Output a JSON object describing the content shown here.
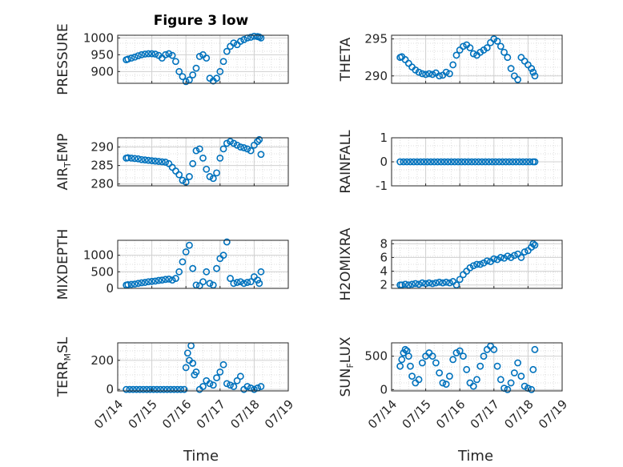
{
  "figure": {
    "title": "Figure 3 low"
  },
  "chart_data": [
    {
      "type": "scatter",
      "ylabel": "PRESSURE",
      "yticks": [
        "1000",
        "950",
        "900"
      ],
      "x": [
        0.25,
        0.3,
        0.4,
        0.5,
        0.6,
        0.7,
        0.8,
        0.9,
        1.0,
        1.1,
        1.2,
        1.3,
        1.4,
        1.5,
        1.6,
        1.7,
        1.8,
        1.9,
        2.0,
        2.1,
        2.2,
        2.3,
        2.4,
        2.5,
        2.6,
        2.7,
        2.8,
        2.9,
        3.0,
        3.1,
        3.2,
        3.3,
        3.4,
        3.5,
        3.6,
        3.7,
        3.8,
        3.9,
        4.0,
        4.1,
        4.15,
        4.2
      ],
      "y": [
        935,
        937,
        940,
        943,
        947,
        950,
        952,
        953,
        953,
        952,
        948,
        940,
        950,
        953,
        948,
        930,
        900,
        885,
        870,
        875,
        890,
        910,
        945,
        950,
        940,
        880,
        872,
        880,
        900,
        930,
        960,
        975,
        985,
        980,
        990,
        995,
        1000,
        1002,
        1005,
        1004,
        1003,
        1000
      ]
    },
    {
      "type": "scatter",
      "ylabel": "THETA",
      "yticks": [
        "295",
        "290"
      ],
      "x": [
        0.25,
        0.3,
        0.4,
        0.5,
        0.6,
        0.7,
        0.8,
        0.9,
        1.0,
        1.1,
        1.2,
        1.3,
        1.4,
        1.5,
        1.6,
        1.7,
        1.8,
        1.9,
        2.0,
        2.1,
        2.2,
        2.3,
        2.4,
        2.5,
        2.6,
        2.7,
        2.8,
        2.9,
        3.0,
        3.1,
        3.2,
        3.3,
        3.4,
        3.5,
        3.6,
        3.7,
        3.8,
        3.9,
        4.0,
        4.1,
        4.15,
        4.2
      ],
      "y": [
        292.5,
        292.6,
        292.2,
        291.7,
        291.2,
        290.8,
        290.5,
        290.3,
        290.2,
        290.3,
        290.2,
        290.4,
        290.0,
        290.1,
        290.5,
        290.3,
        291.5,
        292.8,
        293.5,
        294.0,
        294.2,
        293.8,
        293.0,
        292.8,
        293.2,
        293.5,
        293.8,
        294.5,
        295.0,
        294.7,
        294.0,
        293.2,
        292.5,
        291.0,
        290.0,
        289.5,
        292.5,
        292.0,
        291.5,
        291.0,
        290.5,
        290.0
      ]
    },
    {
      "type": "scatter",
      "ylabel": "AIR",
      "ylabel_sub": "T",
      "ylabel_suffix": "EMP",
      "yticks": [
        "290",
        "285",
        "280"
      ],
      "x": [
        0.25,
        0.3,
        0.4,
        0.5,
        0.6,
        0.7,
        0.8,
        0.9,
        1.0,
        1.1,
        1.2,
        1.3,
        1.4,
        1.5,
        1.6,
        1.7,
        1.8,
        1.9,
        2.0,
        2.1,
        2.2,
        2.3,
        2.4,
        2.5,
        2.6,
        2.7,
        2.8,
        2.9,
        3.0,
        3.1,
        3.2,
        3.3,
        3.4,
        3.5,
        3.6,
        3.7,
        3.8,
        3.9,
        4.0,
        4.1,
        4.15,
        4.2
      ],
      "y": [
        287.0,
        287.1,
        287.0,
        286.9,
        286.8,
        286.6,
        286.5,
        286.4,
        286.3,
        286.2,
        286.1,
        286.0,
        285.9,
        285.5,
        284.5,
        283.5,
        282.5,
        281.0,
        280.5,
        282.0,
        285.5,
        289.0,
        289.5,
        287.0,
        284.0,
        282.0,
        281.5,
        283.0,
        287.0,
        289.5,
        291.0,
        291.5,
        291.0,
        290.5,
        290.0,
        289.8,
        289.5,
        289.0,
        290.5,
        291.5,
        292.0,
        288.0
      ]
    },
    {
      "type": "scatter",
      "ylabel": "RAINFALL",
      "yticks": [
        "1",
        "0",
        "-1"
      ],
      "x": [
        0.25,
        0.35,
        0.45,
        0.55,
        0.65,
        0.75,
        0.85,
        0.95,
        1.05,
        1.15,
        1.25,
        1.35,
        1.45,
        1.55,
        1.65,
        1.75,
        1.85,
        1.95,
        2.05,
        2.15,
        2.25,
        2.35,
        2.45,
        2.55,
        2.65,
        2.75,
        2.85,
        2.95,
        3.05,
        3.15,
        3.25,
        3.35,
        3.45,
        3.55,
        3.65,
        3.75,
        3.85,
        3.95,
        4.05,
        4.15,
        4.2
      ],
      "y": [
        0,
        0,
        0,
        0,
        0,
        0,
        0,
        0,
        0,
        0,
        0,
        0,
        0,
        0,
        0,
        0,
        0,
        0,
        0,
        0,
        0,
        0,
        0,
        0,
        0,
        0,
        0,
        0,
        0,
        0,
        0,
        0,
        0,
        0,
        0,
        0,
        0,
        0,
        0,
        0,
        0
      ]
    },
    {
      "type": "scatter",
      "ylabel": "MIXDEPTH",
      "yticks": [
        "1000",
        "500",
        "0"
      ],
      "x": [
        0.25,
        0.3,
        0.4,
        0.5,
        0.6,
        0.7,
        0.8,
        0.9,
        1.0,
        1.1,
        1.2,
        1.3,
        1.4,
        1.5,
        1.6,
        1.7,
        1.8,
        1.9,
        2.0,
        2.1,
        2.2,
        2.3,
        2.4,
        2.5,
        2.6,
        2.7,
        2.8,
        2.9,
        3.0,
        3.1,
        3.2,
        3.3,
        3.4,
        3.5,
        3.6,
        3.7,
        3.8,
        3.9,
        4.0,
        4.1,
        4.15,
        4.2
      ],
      "y": [
        100,
        110,
        120,
        130,
        150,
        170,
        180,
        200,
        210,
        220,
        240,
        250,
        270,
        280,
        250,
        300,
        500,
        800,
        1100,
        1300,
        600,
        100,
        80,
        200,
        500,
        150,
        100,
        600,
        900,
        1000,
        1400,
        300,
        150,
        180,
        200,
        150,
        180,
        200,
        350,
        250,
        150,
        500
      ]
    },
    {
      "type": "scatter",
      "ylabel": "H2OMIXRA",
      "yticks": [
        "8",
        "6",
        "4",
        "2"
      ],
      "x": [
        0.25,
        0.3,
        0.4,
        0.5,
        0.6,
        0.7,
        0.8,
        0.9,
        1.0,
        1.1,
        1.2,
        1.3,
        1.4,
        1.5,
        1.6,
        1.7,
        1.8,
        1.9,
        2.0,
        2.1,
        2.2,
        2.3,
        2.4,
        2.5,
        2.6,
        2.7,
        2.8,
        2.9,
        3.0,
        3.1,
        3.2,
        3.3,
        3.4,
        3.5,
        3.6,
        3.7,
        3.8,
        3.9,
        4.0,
        4.1,
        4.15,
        4.2
      ],
      "y": [
        2.0,
        2.0,
        2.1,
        2.0,
        2.1,
        2.2,
        2.1,
        2.3,
        2.2,
        2.3,
        2.2,
        2.3,
        2.4,
        2.3,
        2.4,
        2.3,
        2.5,
        2.0,
        2.8,
        3.5,
        4.0,
        4.5,
        4.8,
        5.0,
        5.0,
        5.2,
        5.5,
        5.4,
        5.8,
        5.7,
        6.0,
        5.9,
        6.2,
        6.0,
        6.3,
        6.5,
        6.0,
        6.8,
        7.0,
        7.5,
        8.0,
        7.8
      ]
    },
    {
      "type": "scatter",
      "ylabel": "TERR",
      "ylabel_sub": "M",
      "ylabel_suffix": "SL",
      "yticks": [
        "200",
        "0"
      ],
      "x": [
        0.25,
        0.35,
        0.45,
        0.55,
        0.65,
        0.75,
        0.85,
        0.95,
        1.05,
        1.15,
        1.25,
        1.35,
        1.45,
        1.55,
        1.65,
        1.75,
        1.85,
        1.95,
        2.0,
        2.05,
        2.1,
        2.15,
        2.2,
        2.25,
        2.3,
        2.4,
        2.5,
        2.6,
        2.7,
        2.8,
        2.9,
        3.0,
        3.1,
        3.2,
        3.3,
        3.4,
        3.5,
        3.6,
        3.7,
        3.8,
        3.9,
        4.0,
        4.1,
        4.2
      ],
      "y": [
        0,
        0,
        0,
        0,
        0,
        0,
        0,
        0,
        0,
        0,
        0,
        0,
        0,
        0,
        0,
        0,
        0,
        0,
        150,
        250,
        200,
        300,
        180,
        100,
        120,
        0,
        20,
        60,
        40,
        30,
        80,
        120,
        170,
        40,
        30,
        20,
        60,
        90,
        0,
        20,
        10,
        0,
        10,
        20
      ]
    },
    {
      "type": "scatter",
      "ylabel": "SUN",
      "ylabel_sub": "F",
      "ylabel_suffix": "LUX",
      "yticks": [
        "500",
        "0"
      ],
      "x": [
        0.25,
        0.3,
        0.35,
        0.4,
        0.45,
        0.5,
        0.55,
        0.6,
        0.7,
        0.8,
        0.9,
        1.0,
        1.1,
        1.2,
        1.3,
        1.4,
        1.5,
        1.6,
        1.7,
        1.8,
        1.9,
        2.0,
        2.1,
        2.2,
        2.3,
        2.4,
        2.5,
        2.6,
        2.7,
        2.8,
        2.9,
        3.0,
        3.1,
        3.2,
        3.3,
        3.4,
        3.5,
        3.6,
        3.7,
        3.8,
        3.9,
        4.0,
        4.1,
        4.15,
        4.2
      ],
      "y": [
        350,
        450,
        550,
        600,
        580,
        500,
        350,
        200,
        100,
        150,
        400,
        500,
        550,
        500,
        400,
        250,
        100,
        80,
        200,
        450,
        550,
        580,
        500,
        300,
        100,
        50,
        150,
        350,
        500,
        600,
        650,
        600,
        350,
        150,
        20,
        0,
        100,
        250,
        400,
        200,
        50,
        20,
        0,
        300,
        600
      ]
    }
  ],
  "shared_x": {
    "label": "Time",
    "ticks": [
      "07/14",
      "07/15",
      "07/16",
      "07/17",
      "07/18",
      "07/19"
    ],
    "range": [
      0,
      5
    ]
  }
}
